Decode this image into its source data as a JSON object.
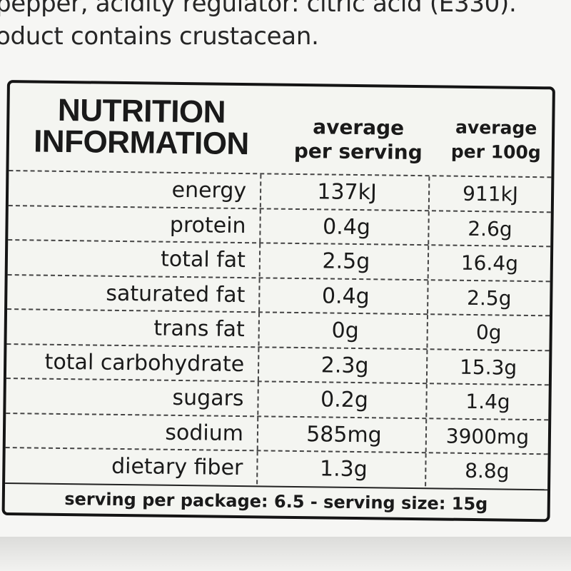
{
  "ingredients_text": [
    "pepper, acidity regulator: citric acid (E330).",
    "oduct contains crustacean."
  ],
  "panel": {
    "title_lines": [
      "NUTRITION",
      "INFORMATION"
    ],
    "col_serving_lines": [
      "average",
      "per serving"
    ],
    "col_100g_lines": [
      "average",
      "per 100g"
    ],
    "rows": [
      {
        "name": "energy",
        "serving": "137kJ",
        "per100": "911kJ"
      },
      {
        "name": "protein",
        "serving": "0.4g",
        "per100": "2.6g"
      },
      {
        "name": "total fat",
        "serving": "2.5g",
        "per100": "16.4g"
      },
      {
        "name": "saturated fat",
        "serving": "0.4g",
        "per100": "2.5g"
      },
      {
        "name": "trans fat",
        "serving": "0g",
        "per100": "0g"
      },
      {
        "name": "total carbohydrate",
        "serving": "2.3g",
        "per100": "15.3g"
      },
      {
        "name": "sugars",
        "serving": "0.2g",
        "per100": "1.4g"
      },
      {
        "name": "sodium",
        "serving": "585mg",
        "per100": "3900mg"
      },
      {
        "name": "dietary fiber",
        "serving": "1.3g",
        "per100": "8.8g"
      }
    ],
    "footer": "serving per package: 6.5 - serving size: 15g"
  }
}
